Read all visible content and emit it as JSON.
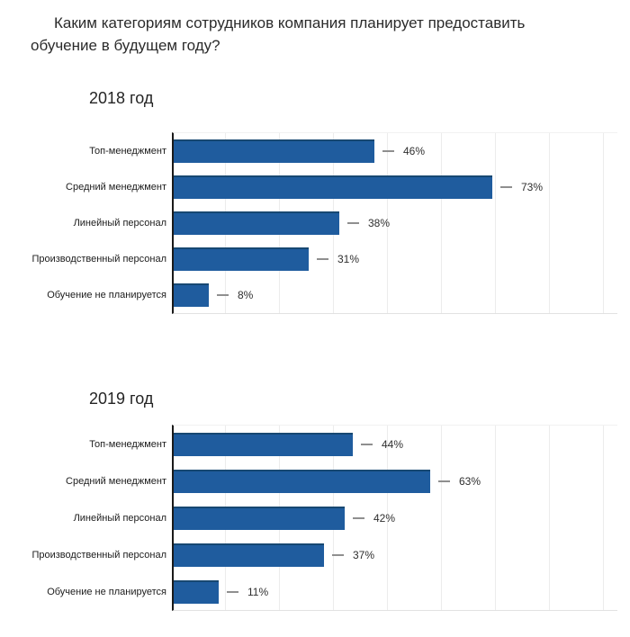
{
  "page": {
    "title": "Каким категориям сотрудников компания планирует предоставить обучение в будущем году?"
  },
  "colors": {
    "bar": "#1f5c9e",
    "bar_top_edge": "#174872",
    "axis": "#1a1a1a",
    "grid": "#ececec",
    "dash": "#8f8f8f",
    "title_text": "#2b2b2b",
    "heading_text": "#242424",
    "category_text": "#1c1c1c",
    "value_text": "#2e2e2e"
  },
  "chart_data": [
    {
      "type": "bar",
      "orientation": "horizontal",
      "title": "2018 год",
      "categories": [
        "Топ-менеджмент",
        "Средний менеджмент",
        "Линейный персонал",
        "Производственный персонал",
        "Обучение не планируется"
      ],
      "values": [
        46,
        73,
        38,
        31,
        8
      ],
      "unit": "%",
      "value_label_format": "value + unit, outside bar after gray dash",
      "xlim": [
        0,
        100
      ],
      "grid": "faint vertical gridlines",
      "legend": "none"
    },
    {
      "type": "bar",
      "orientation": "horizontal",
      "title": "2019 год",
      "categories": [
        "Топ-менеджмент",
        "Средний менеджмент",
        "Линейный персонал",
        "Производственный персонал",
        "Обучение не планируется"
      ],
      "values": [
        44,
        63,
        42,
        37,
        11
      ],
      "unit": "%",
      "value_label_format": "value + unit, outside bar after gray dash",
      "xlim": [
        0,
        100
      ],
      "grid": "faint vertical gridlines",
      "legend": "none"
    }
  ]
}
